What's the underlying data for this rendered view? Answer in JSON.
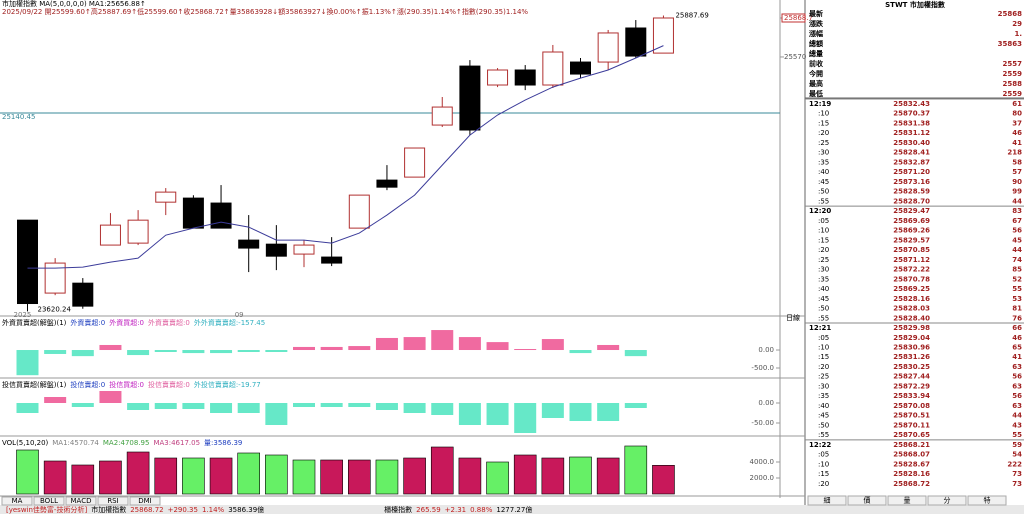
{
  "header": {
    "line1": "市加權指數 MA(5,0,0,0,0) MA1:25656.88↑",
    "line2": "2025/09/22 開25599.60↑高25887.69↑低25599.60↑收25868.72↑量35863928↓額35863927↓換0.00%↑振1.13%↑漲(290.35)1.14%↑指數(290.35)1.14%"
  },
  "main_chart": {
    "type": "candlestick",
    "up_color": "#b03030",
    "down_color": "#000000",
    "ma_color": "#3c3c9a",
    "ref_color": "#3a8a9a",
    "ylim": [
      23615,
      25930
    ],
    "yticks": [
      25868.7,
      25570
    ],
    "ref_line": 25140.45,
    "categories": [
      "2025",
      null,
      null,
      null,
      null,
      null,
      null,
      null,
      "09",
      null,
      null,
      null,
      null,
      null,
      null,
      null,
      null,
      null,
      null,
      null,
      null,
      null,
      null,
      null
    ],
    "candles": [
      {
        "open": 24319,
        "high": 24319,
        "low": 23620.24,
        "close": 23680
      },
      {
        "open": 23760,
        "high": 24028,
        "low": 23744,
        "close": 23990
      },
      {
        "open": 23836,
        "high": 23875,
        "low": 23640,
        "close": 23660
      },
      {
        "open": 24128,
        "high": 24373,
        "low": 24128,
        "close": 24281
      },
      {
        "open": 24143,
        "high": 24396,
        "low": 24128,
        "close": 24319
      },
      {
        "open": 24457,
        "high": 24565,
        "low": 24358,
        "close": 24534
      },
      {
        "open": 24488,
        "high": 24510,
        "low": 24258,
        "close": 24258
      },
      {
        "open": 24450,
        "high": 24588,
        "low": 24258,
        "close": 24258
      },
      {
        "open": 24166,
        "high": 24358,
        "low": 23921,
        "close": 24105
      },
      {
        "open": 24135,
        "high": 24281,
        "low": 23936,
        "close": 24043
      },
      {
        "open": 24059,
        "high": 24166,
        "low": 23959,
        "close": 24128
      },
      {
        "open": 24036,
        "high": 24189,
        "low": 23967,
        "close": 23990
      },
      {
        "open": 24258,
        "high": 24511,
        "low": 24258,
        "close": 24511
      },
      {
        "open": 24626,
        "high": 24741,
        "low": 24549,
        "close": 24572
      },
      {
        "open": 24649,
        "high": 24872,
        "low": 24649,
        "close": 24872
      },
      {
        "open": 25048,
        "high": 25263,
        "low": 25033,
        "close": 25186
      },
      {
        "open": 25500,
        "high": 25546,
        "low": 24971,
        "close": 25010
      },
      {
        "open": 25355,
        "high": 25485,
        "low": 25339,
        "close": 25470
      },
      {
        "open": 25470,
        "high": 25508,
        "low": 25316,
        "close": 25355
      },
      {
        "open": 25355,
        "high": 25662,
        "low": 25332,
        "close": 25608
      },
      {
        "open": 25531,
        "high": 25562,
        "low": 25408,
        "close": 25439
      },
      {
        "open": 25531,
        "high": 25777,
        "low": 25470,
        "close": 25754
      },
      {
        "open": 25792,
        "high": 25853,
        "low": 25562,
        "close": 25577
      },
      {
        "open": 25599.6,
        "high": 25887.69,
        "low": 25599.6,
        "close": 25868.72
      }
    ],
    "ma": [
      23951,
      23951,
      23959,
      23997,
      24028,
      24204,
      24258,
      24304,
      24266,
      24166,
      24166,
      24143,
      24220,
      24358,
      24511,
      24741,
      24971,
      25125,
      25240,
      25339,
      25408,
      25470,
      25562,
      25656.88
    ]
  },
  "foreign": {
    "title": [
      "外資買賣超(解盤)(1)",
      "外資賣超:0",
      "外資買超:0",
      "外資賣賣超:0",
      "外外資賣賣超:-157.45"
    ],
    "title_colors": [
      "#000000",
      "#2040c0",
      "#c020c0",
      "#e060a0",
      "#30b0c0"
    ],
    "pos_color": "#f06aa0",
    "neg_color": "#66e8c8",
    "ylim": [
      -778,
      890
    ],
    "yticks": [
      {
        "value": 0,
        "label": "0.00"
      },
      {
        "value": -500,
        "label": "-500.0"
      }
    ],
    "values": [
      -700,
      -110,
      -170,
      140,
      -140,
      -55,
      -85,
      -85,
      -55,
      -55,
      85,
      85,
      110,
      335,
      360,
      555,
      360,
      220,
      28,
      305,
      -85,
      140,
      -170,
      0
    ]
  },
  "trust": {
    "title": [
      "投信買賣超(解盤)(1)",
      "投信賣超:0",
      "投信買超:0",
      "投信賣賣超:0",
      "外投信賣賣超:-19.77"
    ],
    "title_colors": [
      "#000000",
      "#2040c0",
      "#c020c0",
      "#e060a0",
      "#30b0c0"
    ],
    "pos_color": "#f06aa0",
    "neg_color": "#66e8c8",
    "ylim": [
      -80,
      57.5
    ],
    "yticks": [
      {
        "value": 0,
        "label": "0.00"
      },
      {
        "value": -50,
        "label": "-50.00"
      }
    ],
    "values": [
      -25,
      15,
      -10,
      30,
      -17.5,
      -15,
      -15,
      -25,
      -25,
      -55,
      -10,
      -10,
      -10,
      -17.5,
      -25,
      -30,
      -55,
      -55,
      -75,
      -37.5,
      -45,
      -45,
      -12.5,
      0
    ]
  },
  "volume": {
    "title": [
      "VOL(5,10,20)",
      "MA1:4570.74",
      "MA2:4708.95",
      "MA3:4617.05",
      "量:3586.39"
    ],
    "title_colors": [
      "#000000",
      "#808080",
      "#40a040",
      "#c04080",
      "#2040c0"
    ],
    "ylim": [
      0,
      7000
    ],
    "yticks": [
      {
        "value": 4000,
        "label": "4000.0"
      },
      {
        "value": 2000,
        "label": "2000.0"
      }
    ],
    "values": [
      5500,
      4125,
      3625,
      4125,
      5250,
      4500,
      4500,
      4500,
      5125,
      4875,
      4250,
      4250,
      4250,
      4250,
      4500,
      5875,
      4500,
      4000,
      4875,
      4500,
      4625,
      4500,
      6000,
      3586.39
    ],
    "colors": [
      "#66f066",
      "#c8185a",
      "#c8185a",
      "#c8185a",
      "#c8185a",
      "#c8185a",
      "#66f066",
      "#c8185a",
      "#66f066",
      "#66f066",
      "#66f066",
      "#c8185a",
      "#c8185a",
      "#66f066",
      "#c8185a",
      "#c8185a",
      "#c8185a",
      "#66f066",
      "#c8185a",
      "#c8185a",
      "#66f066",
      "#c8185a",
      "#66f066",
      "#c8185a"
    ]
  },
  "period": "日線",
  "tabs": [
    "MA",
    "BOLL",
    "MACD",
    "RSI",
    "DMI"
  ],
  "quote": {
    "title": "STWT 市加權指數",
    "rows": [
      {
        "label": "最新",
        "value": "25868"
      },
      {
        "label": "漲跌",
        "value": "29"
      },
      {
        "label": "漲幅",
        "value": "1."
      },
      {
        "label": "總額",
        "value": "35863"
      },
      {
        "label": "總量"
      },
      {
        "label": "前收",
        "value": "2557"
      },
      {
        "label": "今開",
        "value": "2559"
      },
      {
        "label": "最高",
        "value": "2588"
      },
      {
        "label": "最低",
        "value": "2559"
      }
    ]
  },
  "ticks": [
    {
      "time": "12:19",
      "price": "25832.43",
      "volume": 61
    },
    {
      "time": ":10",
      "price": "25870.37",
      "volume": 80
    },
    {
      "time": ":15",
      "price": "25831.38",
      "volume": 37
    },
    {
      "time": ":20",
      "price": "25831.12",
      "volume": 46
    },
    {
      "time": ":25",
      "price": "25830.40",
      "volume": 41
    },
    {
      "time": ":30",
      "price": "25828.41",
      "volume": 218
    },
    {
      "time": ":35",
      "price": "25832.87",
      "volume": 58
    },
    {
      "time": ":40",
      "price": "25871.20",
      "volume": 57
    },
    {
      "time": ":45",
      "price": "25873.16",
      "volume": 90
    },
    {
      "time": ":50",
      "price": "25828.59",
      "volume": 99
    },
    {
      "time": ":55",
      "price": "25828.70",
      "volume": 44
    },
    {
      "time": "12:20",
      "price": "25829.47",
      "volume": 83
    },
    {
      "time": ":05",
      "price": "25869.69",
      "volume": 67
    },
    {
      "time": ":10",
      "price": "25869.26",
      "volume": 56
    },
    {
      "time": ":15",
      "price": "25829.57",
      "volume": 45
    },
    {
      "time": ":20",
      "price": "25870.85",
      "volume": 44
    },
    {
      "time": ":25",
      "price": "25871.12",
      "volume": 74
    },
    {
      "time": ":30",
      "price": "25872.22",
      "volume": 85
    },
    {
      "time": ":35",
      "price": "25870.78",
      "volume": 52
    },
    {
      "time": ":40",
      "price": "25869.25",
      "volume": 55
    },
    {
      "time": ":45",
      "price": "25828.16",
      "volume": 53
    },
    {
      "time": ":50",
      "price": "25828.03",
      "volume": 81
    },
    {
      "time": ":55",
      "price": "25828.40",
      "volume": 76
    },
    {
      "time": "12:21",
      "price": "25829.98",
      "volume": 66
    },
    {
      "time": ":05",
      "price": "25829.04",
      "volume": 46
    },
    {
      "time": ":10",
      "price": "25830.96",
      "volume": 65
    },
    {
      "time": ":15",
      "price": "25831.26",
      "volume": 41
    },
    {
      "time": ":20",
      "price": "25830.25",
      "volume": 63
    },
    {
      "time": ":25",
      "price": "25827.44",
      "volume": 56
    },
    {
      "time": ":30",
      "price": "25872.29",
      "volume": 63
    },
    {
      "time": ":35",
      "price": "25833.94",
      "volume": 56
    },
    {
      "time": ":40",
      "price": "25870.08",
      "volume": 63
    },
    {
      "time": ":45",
      "price": "25870.51",
      "volume": 44
    },
    {
      "time": ":50",
      "price": "25870.11",
      "volume": 43
    },
    {
      "time": ":55",
      "price": "25870.65",
      "volume": 55
    },
    {
      "time": "12:22",
      "price": "25868.21",
      "volume": 59
    },
    {
      "time": ":05",
      "price": "25868.07",
      "volume": 54
    },
    {
      "time": ":10",
      "price": "25828.67",
      "volume": 222
    },
    {
      "time": ":15",
      "price": "25828.16",
      "volume": 73
    },
    {
      "time": ":20",
      "price": "25868.72",
      "volume": 73
    }
  ],
  "side_tabs": [
    "細",
    "價",
    "量",
    "分",
    "特"
  ],
  "status": [
    "[yeswin佳勢富-技術分析]",
    "市加權指數",
    "25868.72",
    "+290.35",
    "1.14%",
    "3586.39億",
    "櫃檯指數",
    "265.59",
    "+2.31",
    "0.88%",
    "1277.27億"
  ]
}
